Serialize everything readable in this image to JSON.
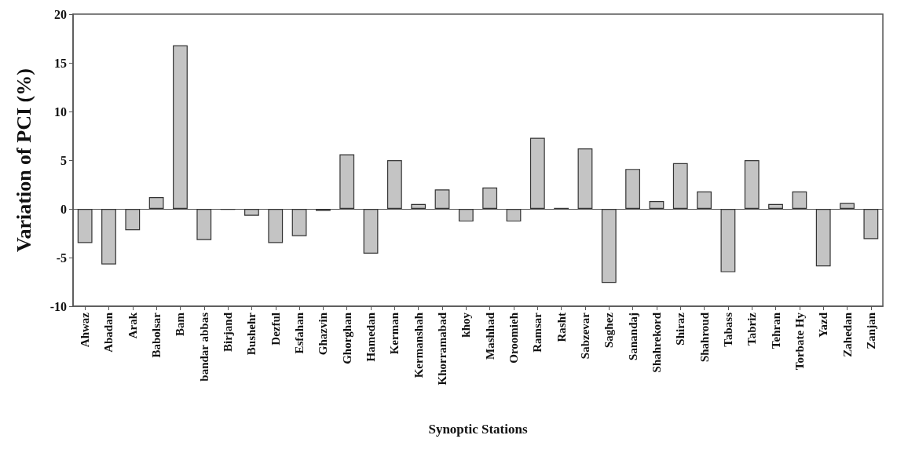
{
  "chart_data": {
    "type": "bar",
    "xlabel": "Synoptic Stations",
    "ylabel": "Variation of PCI (%)",
    "categories": [
      "Ahwaz",
      "Abadan",
      "Arak",
      "Babolsar",
      "Bam",
      "bandar abbas",
      "Birjand",
      "Bushehr",
      "Dezful",
      "Esfahan",
      "Ghazvin",
      "Ghorghan",
      "Hamedan",
      "Kerman",
      "Kermanshah",
      "Khorramabad",
      "khoy",
      "Mashhad",
      "Oroomieh",
      "Ramsar",
      "Rasht",
      "Sabzevar",
      "Saghez",
      "Sanandaj",
      "Shahrekord",
      "Shiraz",
      "Shahroud",
      "Tabass",
      "Tabriz",
      "Tehran",
      "Torbate Hy",
      "Yazd",
      "Zahedan",
      "Zanjan"
    ],
    "values": [
      -3.5,
      -5.7,
      -2.2,
      1.2,
      16.8,
      -3.2,
      -0.1,
      -0.7,
      -3.5,
      -2.8,
      -0.2,
      5.6,
      -4.6,
      5.0,
      0.5,
      2.0,
      -1.3,
      2.2,
      -1.3,
      7.3,
      0.1,
      6.2,
      -7.6,
      4.1,
      0.8,
      4.7,
      1.8,
      -6.5,
      5.0,
      0.5,
      1.8,
      -5.9,
      0.6,
      -3.1
    ],
    "color": "#c4c4c4",
    "ylim": [
      -10,
      20
    ],
    "yticks": [
      -10,
      -5,
      0,
      5,
      10,
      15,
      20
    ],
    "marker": "none"
  }
}
